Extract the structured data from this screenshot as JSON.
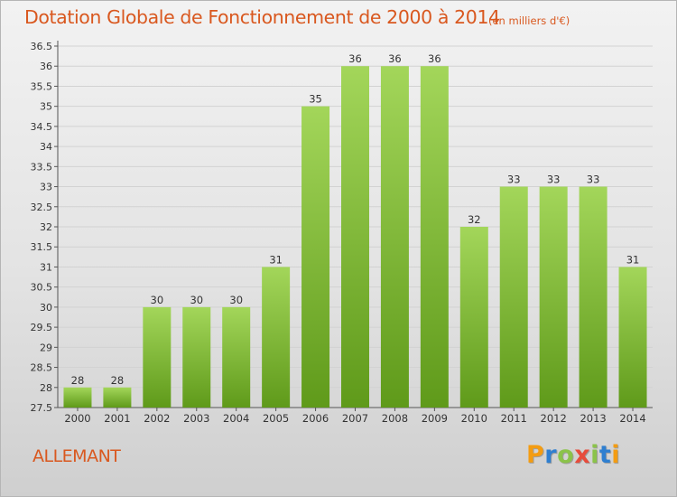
{
  "header": {
    "title": "Dotation Globale de Fonctionnement de 2000 à 2014",
    "unit": "(en milliers d'€)"
  },
  "commune": "ALLEMANT",
  "logo": {
    "text": "Proxiti",
    "colors": [
      "#f39c12",
      "#2f7fd0",
      "#8bc34a",
      "#e74c3c",
      "#8bc34a",
      "#2f7fd0",
      "#f39c12"
    ]
  },
  "colors": {
    "bar_top": "#a3d65a",
    "bar_bottom": "#5f9a1a",
    "accent": "#d9581f"
  },
  "chart_data": {
    "type": "bar",
    "categories": [
      "2000",
      "2001",
      "2002",
      "2003",
      "2004",
      "2005",
      "2006",
      "2007",
      "2008",
      "2009",
      "2010",
      "2011",
      "2012",
      "2013",
      "2014"
    ],
    "values": [
      28,
      28,
      30,
      30,
      30,
      31,
      35,
      36,
      36,
      36,
      32,
      33,
      33,
      33,
      31
    ],
    "data_labels": [
      "28",
      "28",
      "30",
      "30",
      "30",
      "31",
      "35",
      "36",
      "36",
      "36",
      "32",
      "33",
      "33",
      "33",
      "31"
    ],
    "title": "Dotation Globale de Fonctionnement de 2000 à 2014",
    "xlabel": "",
    "ylabel": "",
    "ylim": [
      27.5,
      36.5
    ],
    "yticks": [
      27.5,
      28,
      28.5,
      29,
      29.5,
      30,
      30.5,
      31,
      31.5,
      32,
      32.5,
      33,
      33.5,
      34,
      34.5,
      35,
      35.5,
      36,
      36.5
    ],
    "ytick_labels": [
      "27.5",
      "28",
      "28.5",
      "29",
      "29.5",
      "30",
      "30.5",
      "31",
      "31.5",
      "32",
      "32.5",
      "33",
      "33.5",
      "34",
      "34.5",
      "35",
      "35.5",
      "36",
      "36.5"
    ],
    "grid": true,
    "legend": "none"
  }
}
